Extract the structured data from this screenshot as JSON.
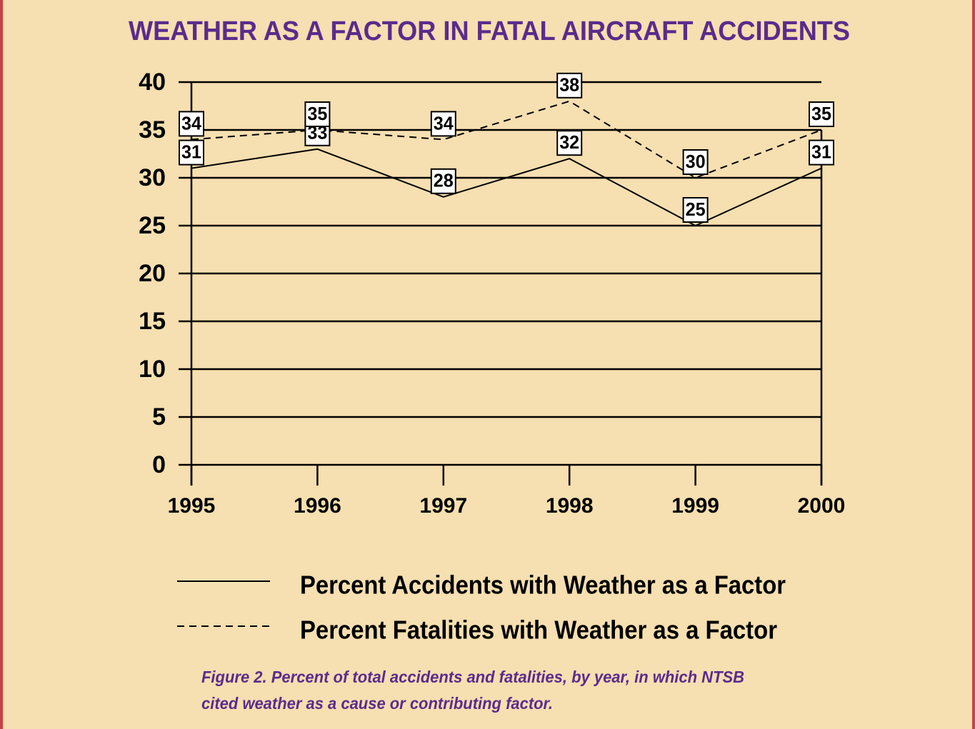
{
  "chart_data": {
    "type": "line",
    "title": "WEATHER AS A FACTOR IN FATAL AIRCRAFT ACCIDENTS",
    "categories": [
      "1995",
      "1996",
      "1997",
      "1998",
      "1999",
      "2000"
    ],
    "series": [
      {
        "name": "Percent Accidents with Weather as a Factor",
        "color": "#000000",
        "line_style": "solid",
        "values": [
          31,
          33,
          28,
          32,
          25,
          31
        ]
      },
      {
        "name": "Percent Fatalities with Weather as a Factor",
        "color": "#000000",
        "line_style": "dashed",
        "values": [
          34,
          35,
          34,
          38,
          30,
          35
        ]
      }
    ],
    "ylim": [
      0,
      40
    ],
    "yticks": [
      0,
      5,
      10,
      15,
      20,
      25,
      30,
      35,
      40
    ],
    "grid": true,
    "legend": "bottom",
    "caption": [
      "Figure 2.  Percent of total accidents and fatalities, by year, in which NTSB",
      "cited weather as a cause or contributing factor."
    ]
  }
}
